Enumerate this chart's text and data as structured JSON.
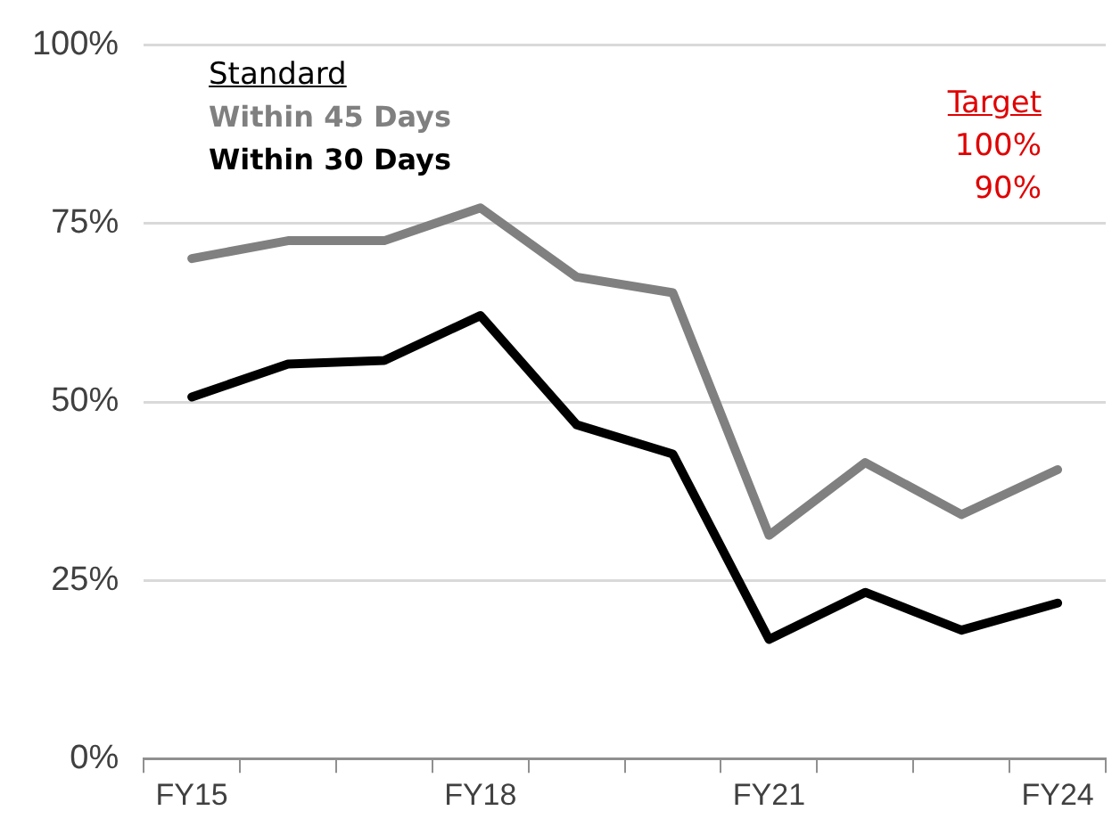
{
  "chart_data": {
    "type": "line",
    "categories": [
      "FY15",
      null,
      null,
      "FY18",
      null,
      null,
      "FY21",
      null,
      null,
      "FY24"
    ],
    "series": [
      {
        "name": "Within 45 Days",
        "color": "#808080",
        "values": [
          70.1,
          72.6,
          72.6,
          77.2,
          67.5,
          65.3,
          31.3,
          41.5,
          34.2,
          40.5
        ]
      },
      {
        "name": "Within 30 Days",
        "color": "#000000",
        "values": [
          50.7,
          55.3,
          55.8,
          62.1,
          46.8,
          42.7,
          16.7,
          23.3,
          18.0,
          21.8
        ]
      }
    ],
    "legend_title": "Standard",
    "legend": "top left",
    "annotations": [
      "Target",
      "100%",
      "90%"
    ],
    "ylim": [
      0,
      100
    ],
    "yticks": [
      {
        "value": 0,
        "label": "0%"
      },
      {
        "value": 25,
        "label": "25%"
      },
      {
        "value": 50,
        "label": "50%"
      },
      {
        "value": 75,
        "label": "75%"
      },
      {
        "value": 100,
        "label": "100%"
      }
    ],
    "grid": "y",
    "marker": "none",
    "line_style": "solid"
  }
}
